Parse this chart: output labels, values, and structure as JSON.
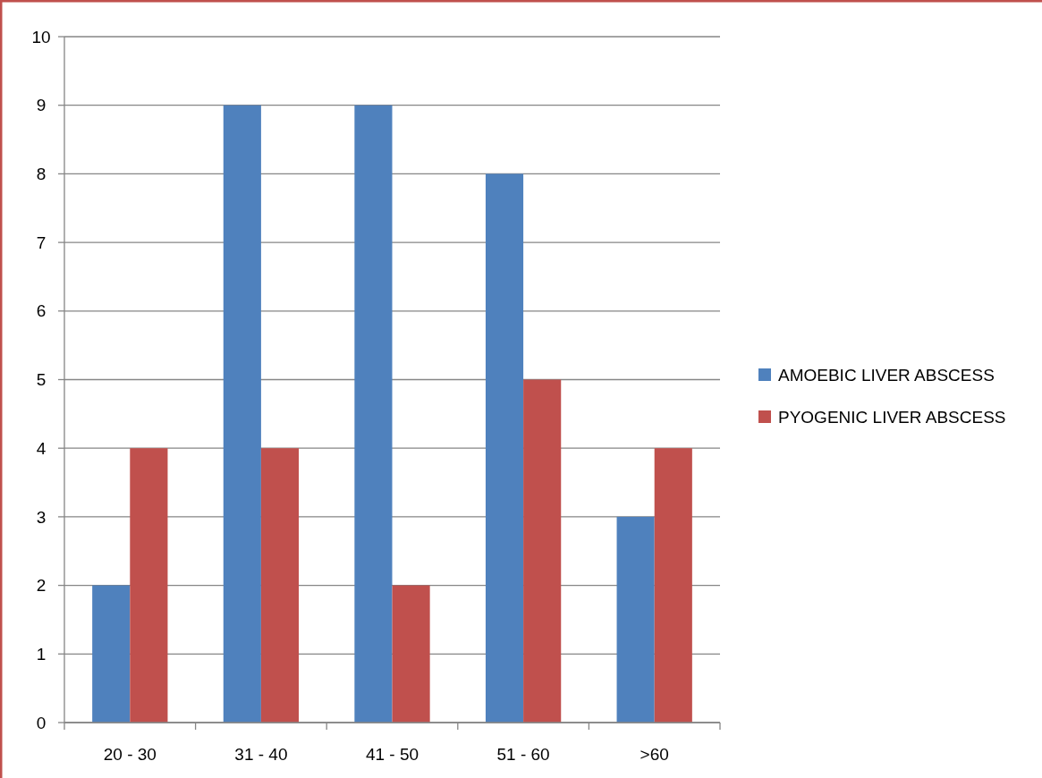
{
  "chart_data": {
    "type": "bar",
    "categories": [
      "20 - 30",
      "31 - 40",
      "41 - 50",
      "51 - 60",
      ">60"
    ],
    "series": [
      {
        "name": "AMOEBIC LIVER ABSCESS",
        "color": "#4f81bd",
        "values": [
          2,
          9,
          9,
          8,
          3
        ]
      },
      {
        "name": "PYOGENIC LIVER ABSCESS",
        "color": "#c0504d",
        "values": [
          4,
          4,
          2,
          5,
          4
        ]
      }
    ],
    "ylim": [
      0,
      10
    ],
    "yticks": [
      0,
      1,
      2,
      3,
      4,
      5,
      6,
      7,
      8,
      9,
      10
    ],
    "grid": "y",
    "legend": "right"
  }
}
